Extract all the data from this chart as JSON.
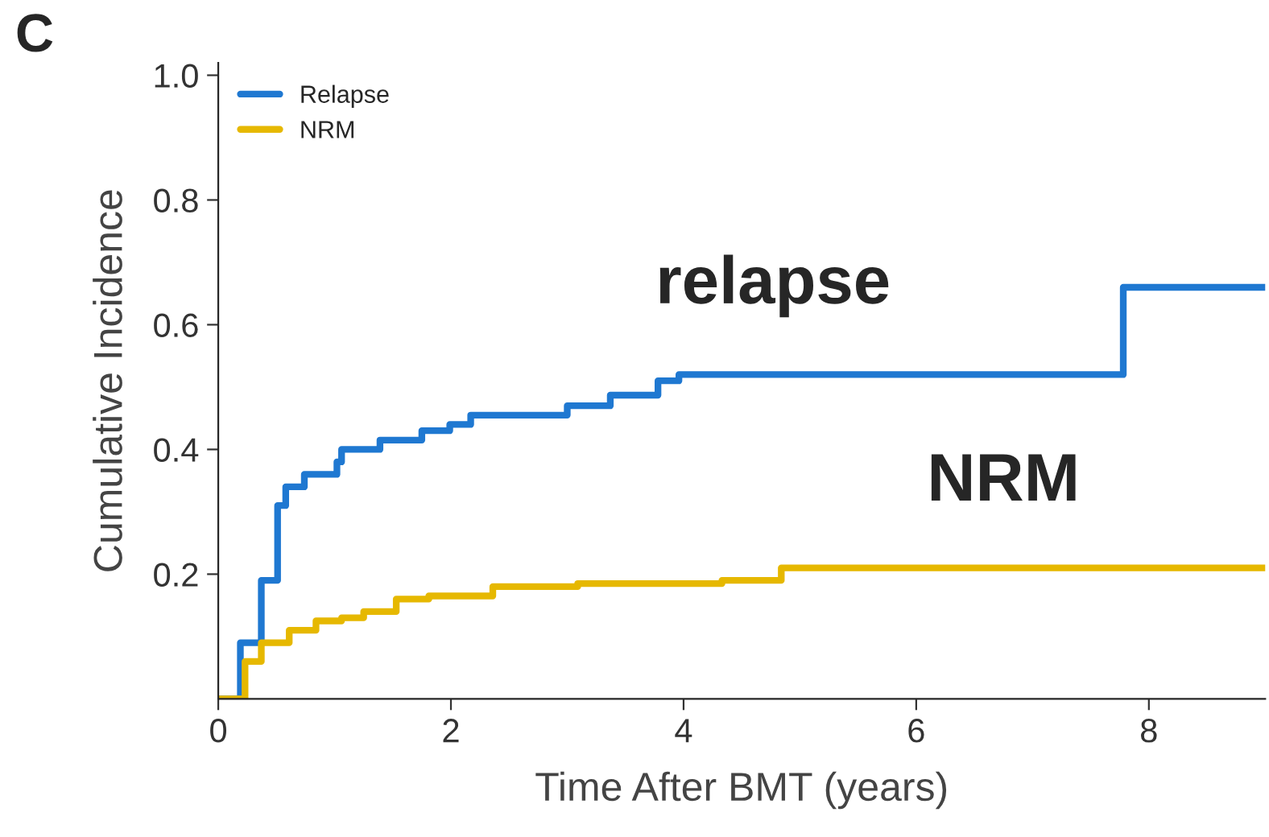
{
  "chart_data": {
    "type": "step",
    "xlabel": "Time After BMT (years)",
    "ylabel": "Cumulative Incidence",
    "xlim": [
      0,
      9
    ],
    "xticks": [
      0,
      2,
      4,
      6,
      8
    ],
    "ylim": [
      0,
      1.02
    ],
    "yticks": [
      0.2,
      0.4,
      0.6,
      0.8,
      {
        "value": 1.0,
        "label": "1.0"
      }
    ],
    "legend": "top left",
    "grid": false,
    "annotations": [
      "C",
      "relapse",
      "NRM"
    ],
    "series": [
      {
        "name": "Relapse",
        "color": "#1f78d1",
        "x": [
          0,
          0.19,
          0.37,
          0.51,
          0.58,
          0.74,
          0.88,
          1.02,
          1.06,
          1.3,
          1.39,
          1.75,
          1.99,
          2.17,
          2.44,
          3.0,
          3.37,
          3.68,
          3.78,
          3.96,
          7.78,
          9
        ],
        "values": [
          0,
          0.09,
          0.19,
          0.31,
          0.34,
          0.36,
          0.36,
          0.38,
          0.4,
          0.4,
          0.415,
          0.43,
          0.44,
          0.455,
          0.455,
          0.47,
          0.487,
          0.487,
          0.51,
          0.52,
          0.66,
          0.66
        ]
      },
      {
        "name": "NRM",
        "color": "#e6b800",
        "x": [
          0,
          0.23,
          0.37,
          0.61,
          0.84,
          1.06,
          1.25,
          1.53,
          1.81,
          2.17,
          2.36,
          3.09,
          4.33,
          4.84,
          9
        ],
        "values": [
          0,
          0.06,
          0.09,
          0.11,
          0.125,
          0.13,
          0.14,
          0.16,
          0.165,
          0.165,
          0.18,
          0.185,
          0.19,
          0.21,
          0.21
        ]
      }
    ]
  }
}
